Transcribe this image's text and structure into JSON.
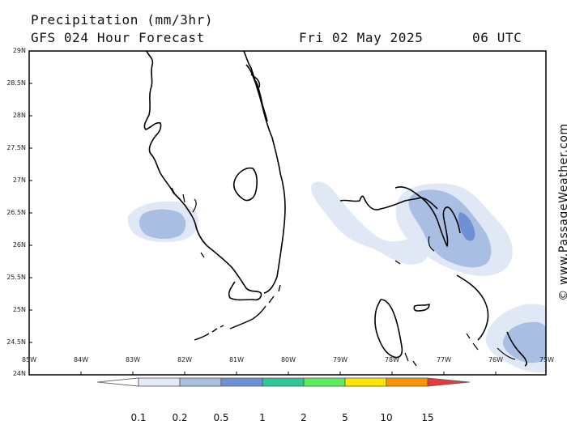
{
  "header": {
    "title": "Precipitation (mm/3hr)",
    "forecast": "GFS 024 Hour Forecast",
    "date": "Fri 02 May 2025",
    "time": "06 UTC"
  },
  "credit": "© www.PassageWeather.com",
  "latitude_labels": [
    "29N",
    "28.5N",
    "28N",
    "27.5N",
    "27N",
    "26.5N",
    "26N",
    "25.5N",
    "25N",
    "24.5N",
    "24N"
  ],
  "longitude_labels": [
    "85W",
    "84W",
    "83W",
    "82W",
    "81W",
    "80W",
    "79W",
    "78W",
    "77W",
    "76W",
    "75W"
  ],
  "legend": {
    "values": [
      "0.1",
      "0.2",
      "0.5",
      "1",
      "2",
      "5",
      "10",
      "15"
    ],
    "colors": [
      "#e3eaf6",
      "#a9c0e4",
      "#6f92d6",
      "#2fc69a",
      "#5bf05b",
      "#ffe600",
      "#ff9400",
      "#e83a3a"
    ]
  },
  "precip_colors": {
    "light": "#e1e8f5",
    "medium": "#a8bfe3",
    "strong": "#6f90d4"
  }
}
